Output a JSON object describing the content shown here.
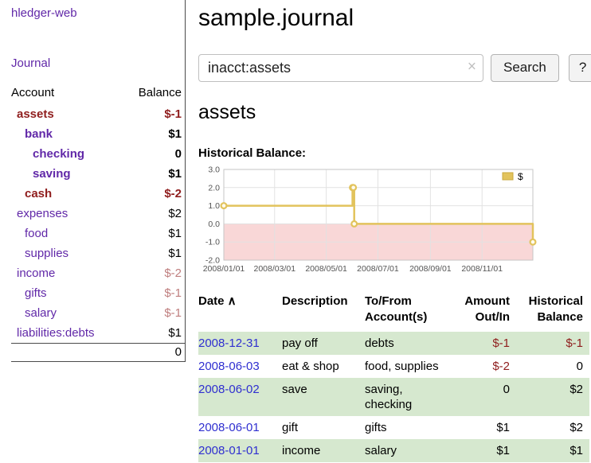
{
  "colors": {
    "purple": "#6128a8",
    "maroon": "#8f1d1d",
    "neg_soft": "#bf7e7e",
    "link_blue": "#2f2fd0",
    "row_green": "#d6e8cf",
    "chart_line": "#e2c35c",
    "chart_line_dark": "#c9a83e",
    "chart_negative_fill": "#f9d7d7"
  },
  "sidebar": {
    "title": "hledger-web",
    "journal_link": "Journal",
    "accounts": {
      "header_account": "Account",
      "header_balance": "Balance",
      "rows": [
        {
          "name": "assets",
          "balance": "$-1",
          "indent": 1,
          "bold": true,
          "name_style": "maroon"
        },
        {
          "name": "bank",
          "balance": "$1",
          "indent": 2,
          "bold": true,
          "name_style": "purple"
        },
        {
          "name": "checking",
          "balance": "0",
          "indent": 3,
          "bold": true,
          "name_style": "purple"
        },
        {
          "name": "saving",
          "balance": "$1",
          "indent": 3,
          "bold": true,
          "name_style": "purple"
        },
        {
          "name": "cash",
          "balance": "$-2",
          "indent": 2,
          "bold": true,
          "name_style": "maroon"
        },
        {
          "name": "expenses",
          "balance": "$2",
          "indent": 1,
          "bold": false,
          "name_style": "purple"
        },
        {
          "name": "food",
          "balance": "$1",
          "indent": 2,
          "bold": false,
          "name_style": "purple"
        },
        {
          "name": "supplies",
          "balance": "$1",
          "indent": 2,
          "bold": false,
          "name_style": "purple"
        },
        {
          "name": "income",
          "balance": "$-2",
          "indent": 1,
          "bold": false,
          "name_style": "purple"
        },
        {
          "name": "gifts",
          "balance": "$-1",
          "indent": 2,
          "bold": false,
          "name_style": "purple"
        },
        {
          "name": "salary",
          "balance": "$-1",
          "indent": 2,
          "bold": false,
          "name_style": "purple"
        },
        {
          "name": "liabilities:debts",
          "balance": "$1",
          "indent": 1,
          "bold": false,
          "name_style": "purple"
        }
      ],
      "total": "0"
    }
  },
  "main": {
    "title": "sample.journal",
    "search": {
      "value": "inacct:assets",
      "clear_icon": "×",
      "button_label": "Search",
      "help_label": "?"
    },
    "account_heading": "assets",
    "register": {
      "headers": [
        {
          "label": "Date",
          "sort_icon": "∧",
          "align": "left"
        },
        {
          "label": "Description",
          "align": "left"
        },
        {
          "label": "To/From\nAccount(s)",
          "align": "left"
        },
        {
          "label": "Amount\nOut/In",
          "align": "right"
        },
        {
          "label": "Historical\nBalance",
          "align": "right"
        }
      ],
      "rows": [
        {
          "date": "2008-12-31",
          "description": "pay off",
          "accounts": "debts",
          "amount": "$-1",
          "balance": "$-1"
        },
        {
          "date": "2008-06-03",
          "description": "eat & shop",
          "accounts": "food, supplies",
          "amount": "$-2",
          "balance": "0"
        },
        {
          "date": "2008-06-02",
          "description": "save",
          "accounts": "saving, checking",
          "amount": "0",
          "balance": "$2"
        },
        {
          "date": "2008-06-01",
          "description": "gift",
          "accounts": "gifts",
          "amount": "$1",
          "balance": "$2"
        },
        {
          "date": "2008-01-01",
          "description": "income",
          "accounts": "salary",
          "amount": "$1",
          "balance": "$1"
        }
      ]
    }
  },
  "chart_data": {
    "type": "line",
    "title": "Historical Balance:",
    "style": "step",
    "series": [
      {
        "name": "$",
        "points": [
          {
            "x": "2008-01-01",
            "y": 1
          },
          {
            "x": "2008-06-01",
            "y": 2
          },
          {
            "x": "2008-06-02",
            "y": 2
          },
          {
            "x": "2008-06-03",
            "y": 0
          },
          {
            "x": "2008-12-31",
            "y": -1
          }
        ]
      }
    ],
    "xlim": [
      "2008-01-01",
      "2008-12-31"
    ],
    "ylim": [
      -2,
      3
    ],
    "y_ticks": [
      3.0,
      2.0,
      1.0,
      0.0,
      -1.0,
      -2.0
    ],
    "x_ticks": [
      "2008/01/01",
      "2008/03/01",
      "2008/05/01",
      "2008/07/01",
      "2008/09/01",
      "2008/11/01"
    ],
    "legend": {
      "label": "$",
      "position": "top-right"
    },
    "grid": true,
    "negative_region_shaded": true
  }
}
